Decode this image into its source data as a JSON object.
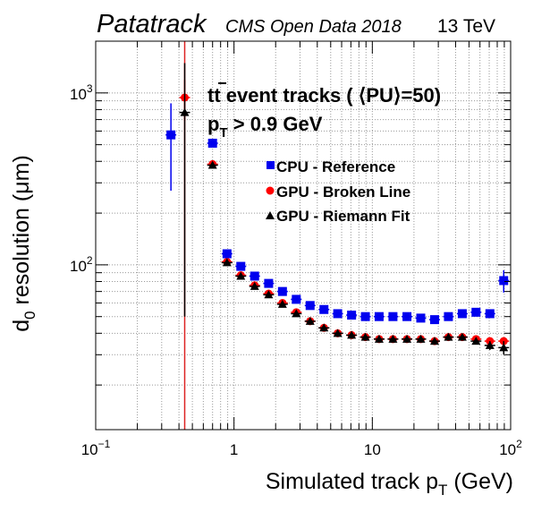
{
  "header": {
    "brand": "Patatrack",
    "dataset": "CMS Open Data 2018",
    "energy": "13 TeV"
  },
  "annotations": {
    "line1_tt": "tt",
    "line1_rest": " event tracks ( ⟨PU⟩=50)",
    "line2_p": "p",
    "line2_sub": "T",
    "line2_rest": " > 0.9 GeV"
  },
  "axes": {
    "x_label_main": "Simulated track p",
    "x_label_sub": "T",
    "x_label_unit": " (GeV)",
    "y_label_d": "d",
    "y_label_sub": "0",
    "y_label_rest": " resolution (μm)"
  },
  "colors": {
    "cpu": "#0000ee",
    "gpu_bl": "#ff0000",
    "gpu_rf": "#000000",
    "vline": "#dd2222",
    "grid": "#9a9a9a"
  },
  "chart_data": {
    "type": "scatter",
    "x_scale": "log",
    "y_scale": "log",
    "xlim": [
      0.1,
      100
    ],
    "ylim": [
      11,
      2000
    ],
    "grid": true,
    "x_ticks": [
      {
        "value": 0.1,
        "base": "10",
        "exp": "−1"
      },
      {
        "value": 1,
        "label": "1"
      },
      {
        "value": 10,
        "label": "10"
      },
      {
        "value": 100,
        "base": "10",
        "exp": "2"
      }
    ],
    "y_ticks": [
      {
        "value": 100,
        "base": "10",
        "exp": "2"
      },
      {
        "value": 1000,
        "base": "10",
        "exp": "3"
      }
    ],
    "legend": {
      "placement": "top-center",
      "entries": [
        {
          "label": "CPU - Reference",
          "marker": "square"
        },
        {
          "label": "GPU - Broken Line",
          "marker": "circle"
        },
        {
          "label": "GPU - Riemann Fit",
          "marker": "triangle"
        }
      ]
    },
    "series": [
      {
        "name": "CPU - Reference",
        "marker": "square",
        "x": [
          0.35,
          0.7,
          0.89,
          1.12,
          1.41,
          1.78,
          2.24,
          2.82,
          3.55,
          4.47,
          5.62,
          7.08,
          8.91,
          11.2,
          14.1,
          17.8,
          22.4,
          28.2,
          35.5,
          44.7,
          56.2,
          70.8,
          89.1
        ],
        "y": [
          570,
          510,
          116,
          98,
          86,
          78,
          70,
          63,
          58,
          55,
          52,
          51,
          50,
          50,
          50,
          50,
          49,
          48,
          50,
          52,
          53,
          52,
          81
        ],
        "yerr": [
          300,
          10,
          3,
          2,
          2,
          2,
          2,
          1,
          1,
          1,
          1,
          1,
          1,
          1,
          1,
          1,
          1,
          1,
          1,
          1,
          2,
          2,
          12
        ]
      },
      {
        "name": "GPU - Broken Line",
        "marker": "circle",
        "x": [
          0.44,
          0.7,
          0.89,
          1.12,
          1.41,
          1.78,
          2.24,
          2.82,
          3.55,
          4.47,
          5.62,
          7.08,
          8.91,
          11.2,
          14.1,
          17.8,
          22.4,
          28.2,
          35.5,
          44.7,
          56.2,
          70.8,
          89.1
        ],
        "y": [
          940,
          385,
          104,
          87,
          76,
          68,
          60,
          53,
          47,
          43,
          40,
          39,
          38,
          37,
          37,
          37,
          37,
          36,
          38,
          38,
          37,
          36,
          36
        ],
        "yerr": [
          250,
          10,
          3,
          2,
          2,
          2,
          1,
          1,
          1,
          1,
          1,
          1,
          1,
          1,
          1,
          1,
          1,
          1,
          1,
          1,
          1,
          1,
          2
        ]
      },
      {
        "name": "GPU - Riemann Fit",
        "marker": "triangle",
        "x": [
          0.44,
          0.7,
          0.89,
          1.12,
          1.41,
          1.78,
          2.24,
          2.82,
          3.55,
          4.47,
          5.62,
          7.08,
          8.91,
          11.2,
          14.1,
          17.8,
          22.4,
          28.2,
          35.5,
          44.7,
          56.2,
          70.8,
          89.1
        ],
        "y": [
          770,
          380,
          103,
          86,
          75,
          67,
          59,
          52,
          47,
          43,
          40,
          39,
          38,
          37,
          37,
          37,
          37,
          36,
          38,
          38,
          36,
          34,
          33
        ],
        "yerr": [
          720,
          10,
          3,
          2,
          2,
          2,
          1,
          1,
          1,
          1,
          1,
          1,
          1,
          1,
          1,
          1,
          1,
          1,
          1,
          1,
          1,
          2,
          3
        ]
      }
    ],
    "vertical_marker": {
      "x": 0.44,
      "series": "GPU - Broken Line"
    }
  }
}
